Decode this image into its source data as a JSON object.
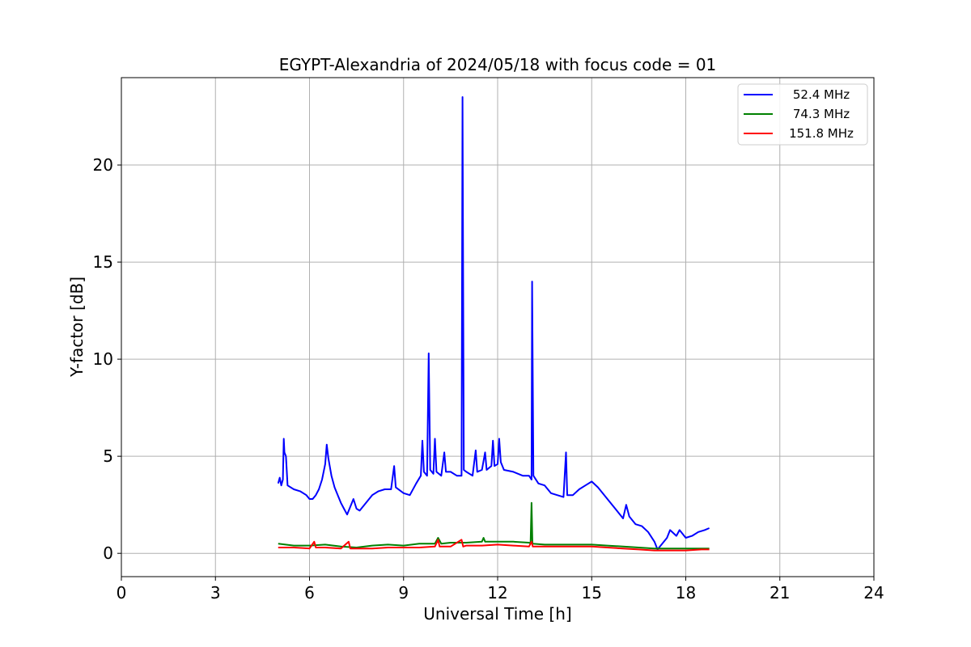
{
  "chart_data": {
    "type": "line",
    "title": "EGYPT-Alexandria of 2024/05/18 with focus code = 01",
    "xlabel": "Universal Time [h]",
    "ylabel": "Y-factor [dB]",
    "xlim": [
      0,
      24
    ],
    "ylim": [
      -1.2,
      24.5
    ],
    "xticks": [
      0,
      3,
      6,
      9,
      12,
      15,
      18,
      21,
      24
    ],
    "yticks": [
      0,
      5,
      10,
      15,
      20
    ],
    "xtick_labels": [
      "0",
      "3",
      "6",
      "9",
      "12",
      "15",
      "18",
      "21",
      "24"
    ],
    "ytick_labels": [
      "0",
      "5",
      "10",
      "15",
      "20"
    ],
    "grid": true,
    "legend_position": "top-right",
    "series": [
      {
        "name": "52.4 MHz",
        "color": "#0000ff",
        "points": [
          [
            5.0,
            3.6
          ],
          [
            5.05,
            3.9
          ],
          [
            5.1,
            3.5
          ],
          [
            5.15,
            3.8
          ],
          [
            5.18,
            5.9
          ],
          [
            5.2,
            5.2
          ],
          [
            5.25,
            5.0
          ],
          [
            5.3,
            3.5
          ],
          [
            5.5,
            3.3
          ],
          [
            5.7,
            3.2
          ],
          [
            5.9,
            3.0
          ],
          [
            6.0,
            2.8
          ],
          [
            6.1,
            2.8
          ],
          [
            6.2,
            3.0
          ],
          [
            6.3,
            3.3
          ],
          [
            6.4,
            3.8
          ],
          [
            6.5,
            4.6
          ],
          [
            6.55,
            5.6
          ],
          [
            6.6,
            4.9
          ],
          [
            6.7,
            4.0
          ],
          [
            6.8,
            3.4
          ],
          [
            6.9,
            3.0
          ],
          [
            7.0,
            2.6
          ],
          [
            7.1,
            2.3
          ],
          [
            7.2,
            2.0
          ],
          [
            7.3,
            2.4
          ],
          [
            7.4,
            2.8
          ],
          [
            7.5,
            2.3
          ],
          [
            7.6,
            2.2
          ],
          [
            7.8,
            2.6
          ],
          [
            8.0,
            3.0
          ],
          [
            8.2,
            3.2
          ],
          [
            8.4,
            3.3
          ],
          [
            8.6,
            3.3
          ],
          [
            8.7,
            4.5
          ],
          [
            8.75,
            3.4
          ],
          [
            9.0,
            3.1
          ],
          [
            9.2,
            3.0
          ],
          [
            9.4,
            3.6
          ],
          [
            9.55,
            4.0
          ],
          [
            9.6,
            5.8
          ],
          [
            9.65,
            4.2
          ],
          [
            9.75,
            4.0
          ],
          [
            9.8,
            10.3
          ],
          [
            9.85,
            4.3
          ],
          [
            9.95,
            4.1
          ],
          [
            10.0,
            5.9
          ],
          [
            10.05,
            4.2
          ],
          [
            10.2,
            4.0
          ],
          [
            10.3,
            5.2
          ],
          [
            10.35,
            4.2
          ],
          [
            10.5,
            4.2
          ],
          [
            10.7,
            4.0
          ],
          [
            10.85,
            4.0
          ],
          [
            10.88,
            23.5
          ],
          [
            10.92,
            4.3
          ],
          [
            11.0,
            4.2
          ],
          [
            11.2,
            4.0
          ],
          [
            11.3,
            5.3
          ],
          [
            11.35,
            4.2
          ],
          [
            11.5,
            4.3
          ],
          [
            11.6,
            5.2
          ],
          [
            11.65,
            4.3
          ],
          [
            11.8,
            4.5
          ],
          [
            11.85,
            5.8
          ],
          [
            11.9,
            4.5
          ],
          [
            12.0,
            4.6
          ],
          [
            12.05,
            5.9
          ],
          [
            12.1,
            4.7
          ],
          [
            12.2,
            4.3
          ],
          [
            12.5,
            4.2
          ],
          [
            12.8,
            4.0
          ],
          [
            13.0,
            4.0
          ],
          [
            13.08,
            3.8
          ],
          [
            13.1,
            14.0
          ],
          [
            13.14,
            4.0
          ],
          [
            13.3,
            3.6
          ],
          [
            13.5,
            3.5
          ],
          [
            13.7,
            3.1
          ],
          [
            13.9,
            3.0
          ],
          [
            14.1,
            2.9
          ],
          [
            14.18,
            5.2
          ],
          [
            14.22,
            3.0
          ],
          [
            14.4,
            3.0
          ],
          [
            14.6,
            3.3
          ],
          [
            14.8,
            3.5
          ],
          [
            15.0,
            3.7
          ],
          [
            15.2,
            3.4
          ],
          [
            15.4,
            3.0
          ],
          [
            15.6,
            2.6
          ],
          [
            15.8,
            2.2
          ],
          [
            16.0,
            1.8
          ],
          [
            16.1,
            2.5
          ],
          [
            16.2,
            1.9
          ],
          [
            16.4,
            1.5
          ],
          [
            16.6,
            1.4
          ],
          [
            16.8,
            1.1
          ],
          [
            17.0,
            0.6
          ],
          [
            17.1,
            0.2
          ],
          [
            17.2,
            0.4
          ],
          [
            17.4,
            0.8
          ],
          [
            17.5,
            1.2
          ],
          [
            17.7,
            0.9
          ],
          [
            17.8,
            1.2
          ],
          [
            18.0,
            0.8
          ],
          [
            18.2,
            0.9
          ],
          [
            18.4,
            1.1
          ],
          [
            18.6,
            1.2
          ],
          [
            18.75,
            1.3
          ]
        ]
      },
      {
        "name": "74.3 MHz",
        "color": "#008000",
        "points": [
          [
            5.0,
            0.5
          ],
          [
            5.5,
            0.4
          ],
          [
            6.0,
            0.4
          ],
          [
            6.5,
            0.45
          ],
          [
            7.0,
            0.35
          ],
          [
            7.5,
            0.3
          ],
          [
            8.0,
            0.4
          ],
          [
            8.5,
            0.45
          ],
          [
            9.0,
            0.4
          ],
          [
            9.5,
            0.5
          ],
          [
            10.0,
            0.5
          ],
          [
            10.1,
            0.8
          ],
          [
            10.2,
            0.5
          ],
          [
            10.5,
            0.55
          ],
          [
            11.0,
            0.55
          ],
          [
            11.5,
            0.6
          ],
          [
            11.55,
            0.8
          ],
          [
            11.6,
            0.6
          ],
          [
            12.0,
            0.6
          ],
          [
            12.5,
            0.6
          ],
          [
            13.0,
            0.55
          ],
          [
            13.05,
            0.5
          ],
          [
            13.08,
            2.6
          ],
          [
            13.11,
            0.5
          ],
          [
            13.5,
            0.45
          ],
          [
            14.0,
            0.45
          ],
          [
            14.5,
            0.45
          ],
          [
            15.0,
            0.45
          ],
          [
            15.5,
            0.4
          ],
          [
            16.0,
            0.35
          ],
          [
            16.5,
            0.3
          ],
          [
            17.0,
            0.25
          ],
          [
            17.5,
            0.25
          ],
          [
            18.0,
            0.25
          ],
          [
            18.5,
            0.25
          ],
          [
            18.75,
            0.25
          ]
        ]
      },
      {
        "name": "151.8 MHz",
        "color": "#ff0000",
        "points": [
          [
            5.0,
            0.3
          ],
          [
            5.5,
            0.3
          ],
          [
            6.0,
            0.25
          ],
          [
            6.15,
            0.6
          ],
          [
            6.2,
            0.3
          ],
          [
            6.5,
            0.3
          ],
          [
            7.0,
            0.25
          ],
          [
            7.25,
            0.6
          ],
          [
            7.3,
            0.25
          ],
          [
            7.5,
            0.25
          ],
          [
            8.0,
            0.25
          ],
          [
            8.5,
            0.3
          ],
          [
            9.0,
            0.3
          ],
          [
            9.5,
            0.3
          ],
          [
            10.0,
            0.35
          ],
          [
            10.1,
            0.7
          ],
          [
            10.15,
            0.35
          ],
          [
            10.5,
            0.35
          ],
          [
            10.85,
            0.7
          ],
          [
            10.9,
            0.35
          ],
          [
            11.0,
            0.4
          ],
          [
            11.5,
            0.4
          ],
          [
            12.0,
            0.45
          ],
          [
            12.5,
            0.4
          ],
          [
            13.0,
            0.35
          ],
          [
            13.08,
            0.6
          ],
          [
            13.12,
            0.35
          ],
          [
            13.5,
            0.35
          ],
          [
            14.0,
            0.35
          ],
          [
            14.5,
            0.35
          ],
          [
            15.0,
            0.35
          ],
          [
            15.5,
            0.3
          ],
          [
            16.0,
            0.25
          ],
          [
            16.5,
            0.2
          ],
          [
            17.0,
            0.15
          ],
          [
            17.5,
            0.15
          ],
          [
            18.0,
            0.15
          ],
          [
            18.5,
            0.2
          ],
          [
            18.75,
            0.2
          ]
        ]
      }
    ]
  }
}
